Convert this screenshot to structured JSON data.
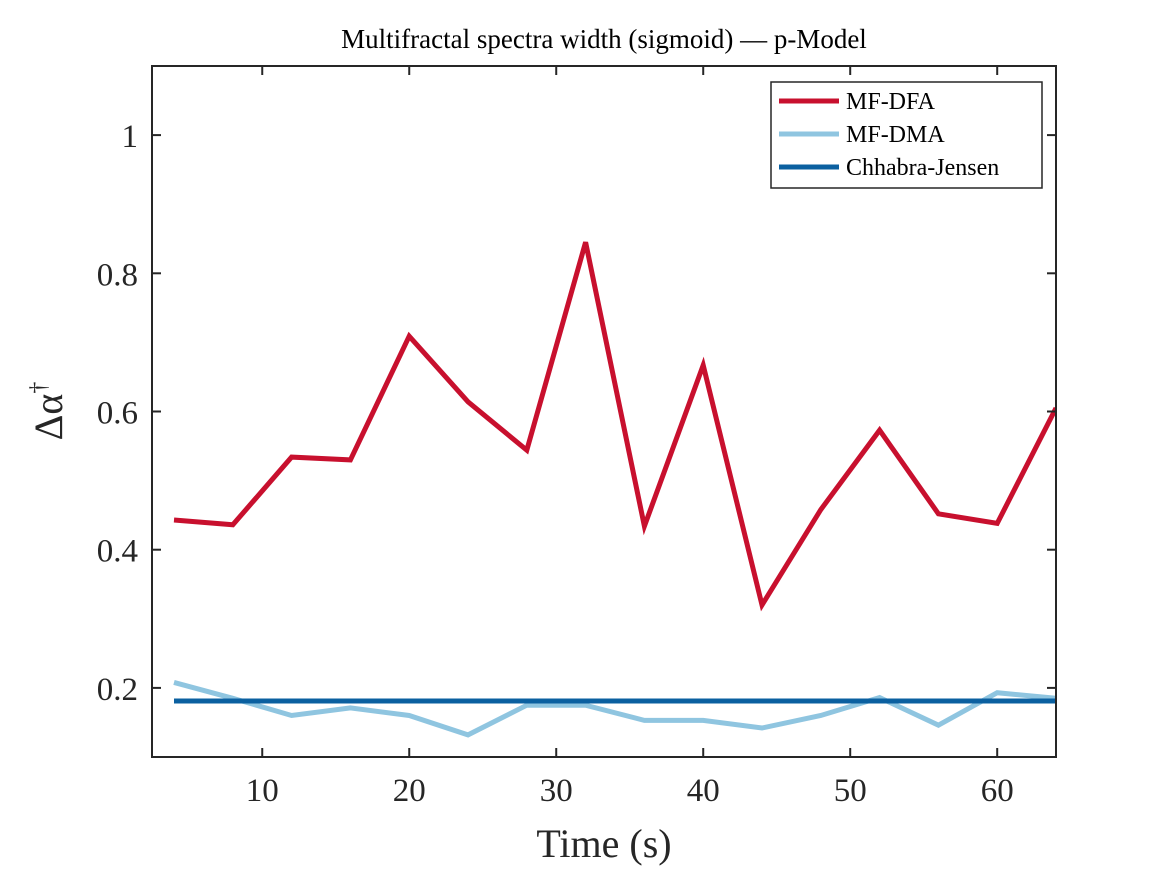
{
  "chart_data": {
    "type": "line",
    "title": "Multifractal spectra width (sigmoid) — p-Model",
    "xlabel": "Time (s)",
    "ylabel_base": "Δα",
    "ylabel_sup": "†",
    "xlim": [
      2.5,
      64
    ],
    "ylim": [
      0.1,
      1.1
    ],
    "xticks": [
      10,
      20,
      30,
      40,
      50,
      60
    ],
    "yticks": [
      0.2,
      0.4,
      0.6,
      0.8,
      1
    ],
    "ytick_labels": [
      "0.2",
      "0.4",
      "0.6",
      "0.8",
      "1"
    ],
    "grid": false,
    "legend_position": "top-right",
    "x": [
      4,
      8,
      12,
      16,
      20,
      24,
      28,
      32,
      36,
      40,
      44,
      48,
      52,
      56,
      60,
      64
    ],
    "series": [
      {
        "name": "MF-DFA",
        "color": "#c8102e",
        "values": [
          0.443,
          0.436,
          0.534,
          0.53,
          0.709,
          0.614,
          0.544,
          0.845,
          0.434,
          0.667,
          0.32,
          0.458,
          0.573,
          0.452,
          0.438,
          0.605
        ]
      },
      {
        "name": "MF-DMA",
        "color": "#8fc5e0",
        "values": [
          0.208,
          0.185,
          0.16,
          0.171,
          0.16,
          0.132,
          0.175,
          0.175,
          0.153,
          0.153,
          0.142,
          0.16,
          0.186,
          0.146,
          0.193,
          0.185
        ]
      },
      {
        "name": "Chhabra-Jensen",
        "color": "#0b60a0",
        "values": [
          0.181,
          0.181,
          0.181,
          0.181,
          0.181,
          0.181,
          0.181,
          0.181,
          0.181,
          0.181,
          0.181,
          0.181,
          0.181,
          0.181,
          0.181,
          0.181
        ]
      }
    ]
  }
}
